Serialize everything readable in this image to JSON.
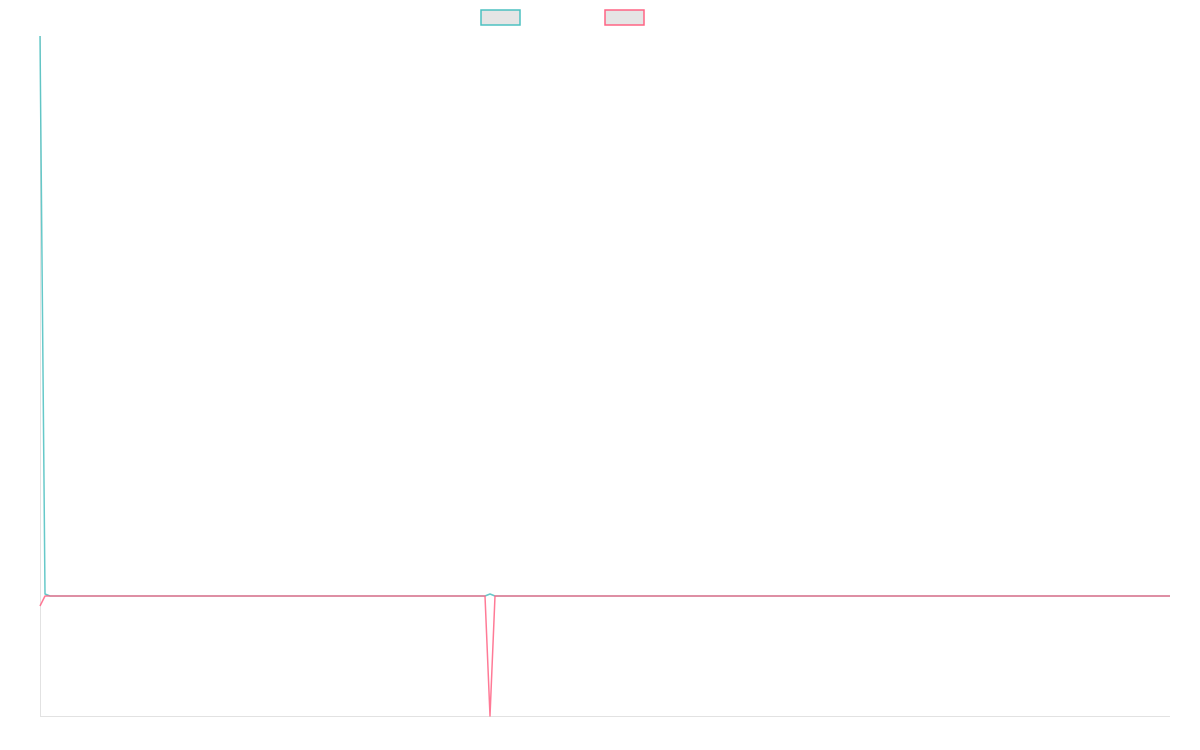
{
  "chart_data": {
    "type": "line",
    "title": "",
    "xlabel": "",
    "ylabel": "",
    "grid": false,
    "legend": "top",
    "xlim": [
      0,
      226
    ],
    "ylim": [
      -120,
      560
    ],
    "series": [
      {
        "color": "#4bc0c0",
        "points": [
          [
            0,
            560
          ],
          [
            1,
            2
          ],
          [
            2,
            0
          ],
          [
            89,
            0
          ],
          [
            90,
            2
          ],
          [
            91,
            0
          ],
          [
            226,
            0
          ]
        ]
      },
      {
        "color": "#ff6384",
        "points": [
          [
            0,
            -10
          ],
          [
            1,
            0
          ],
          [
            89,
            0
          ],
          [
            90,
            -120
          ],
          [
            91,
            0
          ],
          [
            226,
            0
          ]
        ]
      }
    ]
  }
}
